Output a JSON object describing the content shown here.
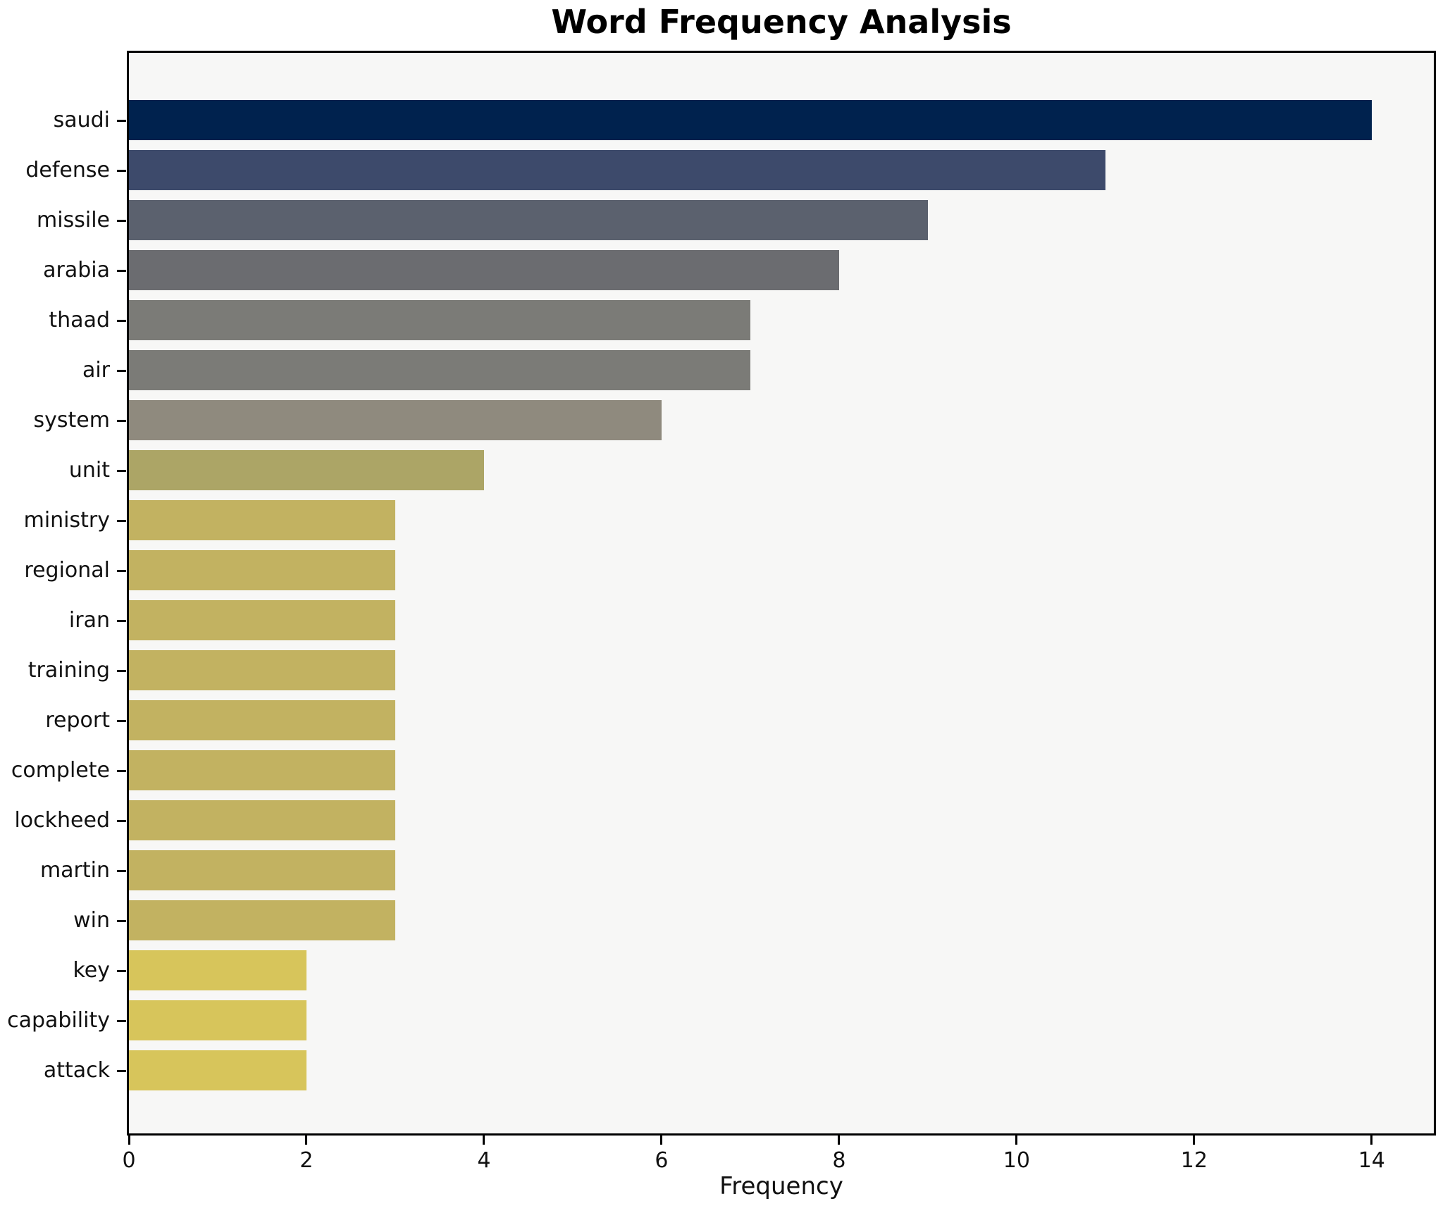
{
  "title": "Word Frequency Analysis",
  "chart_data": {
    "type": "bar",
    "orientation": "horizontal",
    "title": "Word Frequency Analysis",
    "xlabel": "Frequency",
    "ylabel": "",
    "categories": [
      "saudi",
      "defense",
      "missile",
      "arabia",
      "thaad",
      "air",
      "system",
      "unit",
      "ministry",
      "regional",
      "iran",
      "training",
      "report",
      "complete",
      "lockheed",
      "martin",
      "win",
      "key",
      "capability",
      "attack"
    ],
    "values": [
      14,
      11,
      9,
      8,
      7,
      7,
      6,
      4,
      3,
      3,
      3,
      3,
      3,
      3,
      3,
      3,
      3,
      2,
      2,
      2
    ],
    "bar_colors": [
      "#00224e",
      "#3d4a6b",
      "#5b616e",
      "#6b6c70",
      "#7b7b77",
      "#7b7b77",
      "#8f8a7e",
      "#aca566",
      "#c2b261",
      "#c2b261",
      "#c2b261",
      "#c2b261",
      "#c2b261",
      "#c2b261",
      "#c2b261",
      "#c2b261",
      "#c2b261",
      "#d7c55b",
      "#d7c55b",
      "#d7c55b"
    ],
    "x_ticks": [
      0,
      2,
      4,
      6,
      8,
      10,
      12,
      14
    ],
    "xlim": [
      0,
      14.7
    ],
    "grid": false,
    "legend": null,
    "plot_bg": "#f7f7f6",
    "fig_bg": "#ffffff",
    "spine_color": "#000000",
    "colormap": "cividis"
  }
}
